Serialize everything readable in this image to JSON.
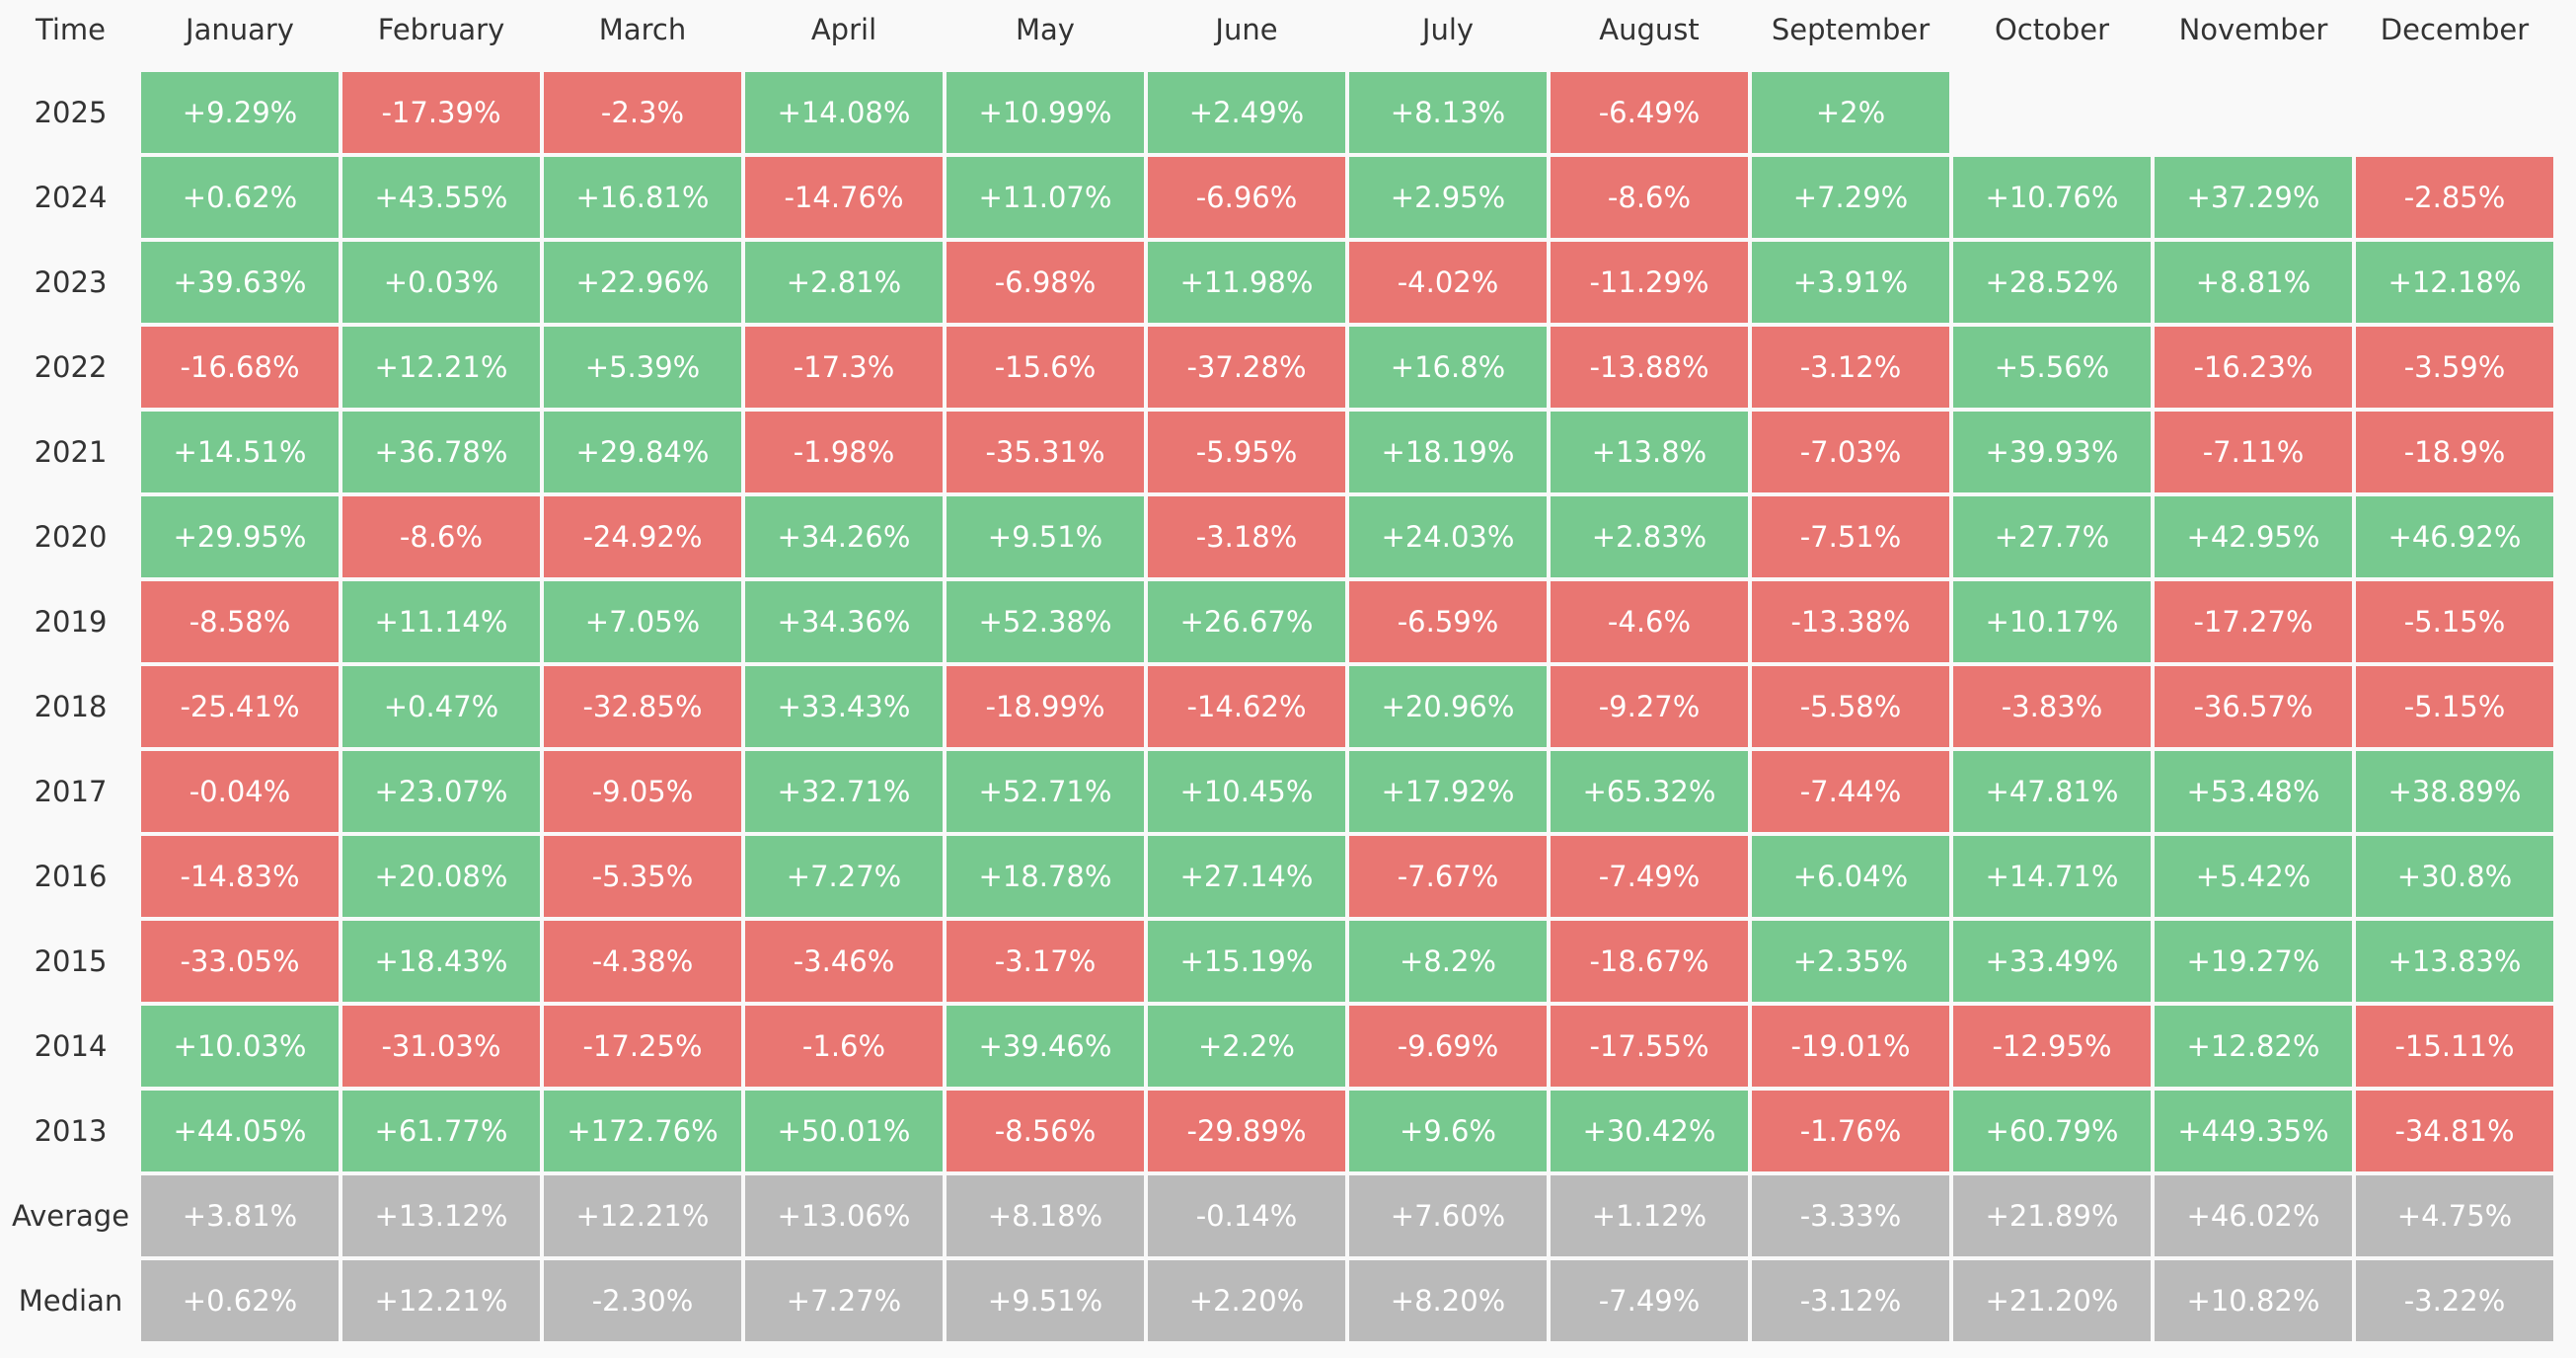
{
  "table": {
    "header": [
      "Time",
      "January",
      "February",
      "March",
      "April",
      "May",
      "June",
      "July",
      "August",
      "September",
      "October",
      "November",
      "December"
    ],
    "rows": [
      [
        "2025",
        "+9.29%",
        "-17.39%",
        "-2.3%",
        "+14.08%",
        "+10.99%",
        "+2.49%",
        "+8.13%",
        "-6.49%",
        "+2%"
      ],
      [
        "2024",
        "+0.62%",
        "+43.55%",
        "+16.81%",
        "-14.76%",
        "+11.07%",
        "-6.96%",
        "+2.95%",
        "-8.6%",
        "+7.29%",
        "+10.76%",
        "+37.29%",
        "-2.85%"
      ],
      [
        "2023",
        "+39.63%",
        "+0.03%",
        "+22.96%",
        "+2.81%",
        "-6.98%",
        "+11.98%",
        "-4.02%",
        "-11.29%",
        "+3.91%",
        "+28.52%",
        "+8.81%",
        "+12.18%"
      ],
      [
        "2022",
        "-16.68%",
        "+12.21%",
        "+5.39%",
        "-17.3%",
        "-15.6%",
        "-37.28%",
        "+16.8%",
        "-13.88%",
        "-3.12%",
        "+5.56%",
        "-16.23%",
        "-3.59%"
      ],
      [
        "2021",
        "+14.51%",
        "+36.78%",
        "+29.84%",
        "-1.98%",
        "-35.31%",
        "-5.95%",
        "+18.19%",
        "+13.8%",
        "-7.03%",
        "+39.93%",
        "-7.11%",
        "-18.9%"
      ],
      [
        "2020",
        "+29.95%",
        "-8.6%",
        "-24.92%",
        "+34.26%",
        "+9.51%",
        "-3.18%",
        "+24.03%",
        "+2.83%",
        "-7.51%",
        "+27.7%",
        "+42.95%",
        "+46.92%"
      ],
      [
        "2019",
        "-8.58%",
        "+11.14%",
        "+7.05%",
        "+34.36%",
        "+52.38%",
        "+26.67%",
        "-6.59%",
        "-4.6%",
        "-13.38%",
        "+10.17%",
        "-17.27%",
        "-5.15%"
      ],
      [
        "2018",
        "-25.41%",
        "+0.47%",
        "-32.85%",
        "+33.43%",
        "-18.99%",
        "-14.62%",
        "+20.96%",
        "-9.27%",
        "-5.58%",
        "-3.83%",
        "-36.57%",
        "-5.15%"
      ],
      [
        "2017",
        "-0.04%",
        "+23.07%",
        "-9.05%",
        "+32.71%",
        "+52.71%",
        "+10.45%",
        "+17.92%",
        "+65.32%",
        "-7.44%",
        "+47.81%",
        "+53.48%",
        "+38.89%"
      ],
      [
        "2016",
        "-14.83%",
        "+20.08%",
        "-5.35%",
        "+7.27%",
        "+18.78%",
        "+27.14%",
        "-7.67%",
        "-7.49%",
        "+6.04%",
        "+14.71%",
        "+5.42%",
        "+30.8%"
      ],
      [
        "2015",
        "-33.05%",
        "+18.43%",
        "-4.38%",
        "-3.46%",
        "-3.17%",
        "+15.19%",
        "+8.2%",
        "-18.67%",
        "+2.35%",
        "+33.49%",
        "+19.27%",
        "+13.83%"
      ],
      [
        "2014",
        "+10.03%",
        "-31.03%",
        "-17.25%",
        "-1.6%",
        "+39.46%",
        "+2.2%",
        "-9.69%",
        "-17.55%",
        "-19.01%",
        "-12.95%",
        "+12.82%",
        "-15.11%"
      ],
      [
        "2013",
        "+44.05%",
        "+61.77%",
        "+172.76%",
        "+50.01%",
        "-8.56%",
        "-29.89%",
        "+9.6%",
        "+30.42%",
        "-1.76%",
        "+60.79%",
        "+449.35%",
        "-34.81%"
      ]
    ],
    "summary_rows": [
      [
        "Average",
        "+3.81%",
        "+13.12%",
        "+12.21%",
        "+13.06%",
        "+8.18%",
        "-0.14%",
        "+7.60%",
        "+1.12%",
        "-3.33%",
        "+21.89%",
        "+46.02%",
        "+4.75%"
      ],
      [
        "Median",
        "+0.62%",
        "+12.21%",
        "-2.30%",
        "+7.27%",
        "+9.51%",
        "+2.20%",
        "+8.20%",
        "-7.49%",
        "-3.12%",
        "+21.20%",
        "+10.82%",
        "-3.22%"
      ]
    ]
  }
}
